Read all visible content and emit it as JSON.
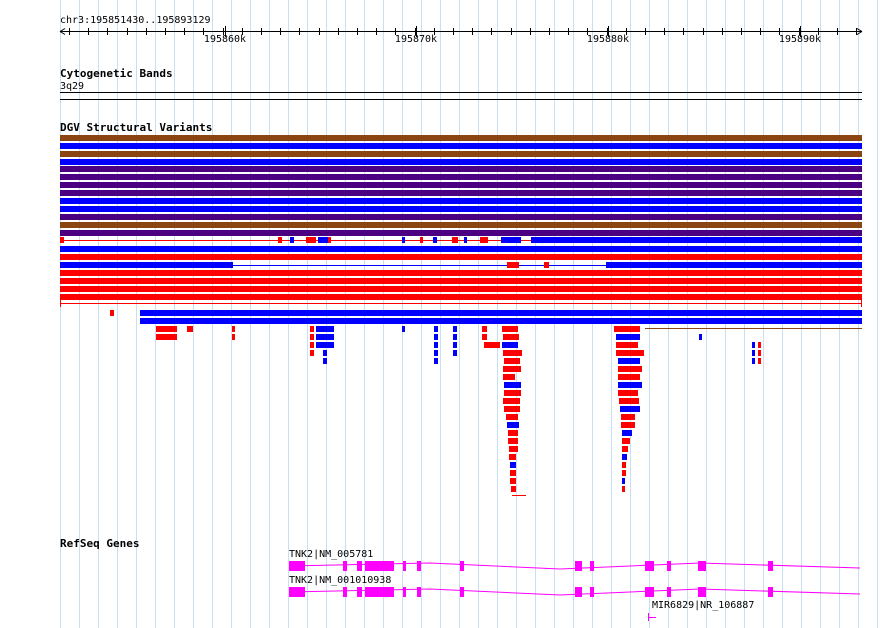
{
  "region": "chr3:195851430..195893129",
  "ruler": {
    "ticks": [
      {
        "label": "195860k",
        "pos": 195860000
      },
      {
        "label": "195870k",
        "pos": 195870000
      },
      {
        "label": "195880k",
        "pos": 195880000
      },
      {
        "label": "195890k",
        "pos": 195890000
      }
    ]
  },
  "tracks": {
    "cytoband": {
      "title": "Cytogenetic Bands",
      "band": "3q29"
    },
    "dgv": {
      "title": "DGV Structural Variants"
    },
    "refseq": {
      "title": "RefSeq Genes",
      "genes": [
        {
          "label": "TNK2|NM_005781"
        },
        {
          "label": "TNK2|NM_001010938"
        },
        {
          "label": "MIR6829|NR_106887"
        }
      ]
    }
  },
  "colors": {
    "background": "#ffffff",
    "grid": "#c8dff2",
    "loss": "#ff0000",
    "gain": "#0000ff",
    "complex": "#4b0082",
    "inversion": "#8b4513",
    "gene": "#ff00ff"
  }
}
